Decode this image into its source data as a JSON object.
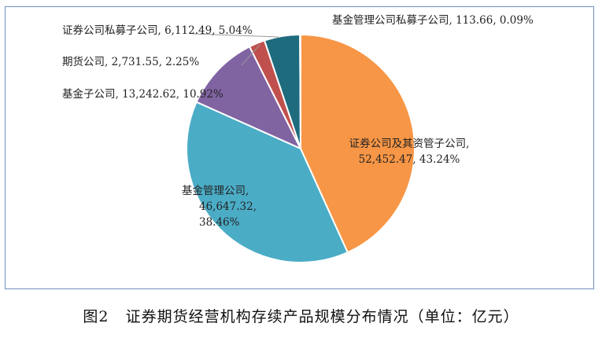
{
  "caption": "图2   证券期货经营机构存续产品规模分布情况（单位：亿元）",
  "chart_data": {
    "type": "pie",
    "title": "",
    "slices": [
      {
        "name": "证券公司及其资管子公司",
        "value": 52452.47,
        "percent": 43.24,
        "color": "#f79646",
        "label_lines": [
          "证券公司及其资管子公司,",
          "52,452.47, 43.24%"
        ]
      },
      {
        "name": "基金管理公司",
        "value": 46647.32,
        "percent": 38.46,
        "color": "#4bacc6",
        "label_lines": [
          "基金管理公司,",
          "46,647.32,",
          "38.46%"
        ]
      },
      {
        "name": "基金子公司",
        "value": 13242.62,
        "percent": 10.92,
        "color": "#8064a2",
        "label_lines": [
          "基金子公司, 13,242.62, 10.92%"
        ]
      },
      {
        "name": "期货公司",
        "value": 2731.55,
        "percent": 2.25,
        "color": "#c0504d",
        "label_lines": [
          "期货公司, 2,731.55, 2.25%"
        ]
      },
      {
        "name": "证券公司私募子公司",
        "value": 6112.49,
        "percent": 5.04,
        "color": "#1f6b7e",
        "label_lines": [
          "证券公司私募子公司, 6,112.49, 5.04%"
        ]
      },
      {
        "name": "基金管理公司私募子公司",
        "value": 113.66,
        "percent": 0.09,
        "color": "#f4a460",
        "label_lines": [
          "基金管理公司私募子公司, 113.66, 0.09%"
        ]
      }
    ]
  }
}
